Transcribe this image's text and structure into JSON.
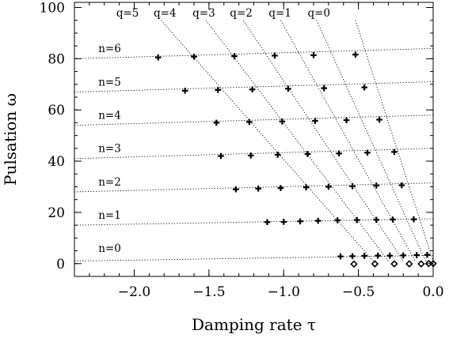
{
  "chart_data": {
    "type": "scatter",
    "xlabel": "Damping rate τ",
    "ylabel": "Pulsation ω",
    "xlim": [
      -2.4,
      0.0
    ],
    "ylim": [
      -5,
      102
    ],
    "xticks": [
      -2.0,
      -1.5,
      -1.0,
      -0.5,
      0.0
    ],
    "xtick_labels": [
      "−2.0",
      "−1.5",
      "−1.0",
      "−0.5",
      "0.0"
    ],
    "yticks": [
      0,
      20,
      40,
      60,
      80,
      100
    ],
    "ytick_labels": [
      "0",
      "20",
      "40",
      "60",
      "80",
      "100"
    ],
    "grid": false,
    "legend": null,
    "n_lines": [
      {
        "label": "n=0",
        "x": [
          -2.4,
          0.0
        ],
        "y": [
          1.0,
          3.2
        ]
      },
      {
        "label": "n=1",
        "x": [
          -2.4,
          0.0
        ],
        "y": [
          15.0,
          17.5
        ]
      },
      {
        "label": "n=2",
        "x": [
          -2.4,
          0.0
        ],
        "y": [
          28.0,
          31.5
        ]
      },
      {
        "label": "n=3",
        "x": [
          -2.4,
          0.0
        ],
        "y": [
          41.0,
          45.0
        ]
      },
      {
        "label": "n=4",
        "x": [
          -2.4,
          0.0
        ],
        "y": [
          54.0,
          58.0
        ]
      },
      {
        "label": "n=5",
        "x": [
          -2.4,
          0.0
        ],
        "y": [
          67.0,
          71.0
        ]
      },
      {
        "label": "n=6",
        "x": [
          -2.4,
          0.0
        ],
        "y": [
          80.0,
          84.0
        ]
      }
    ],
    "q_lines": [
      {
        "label": "q=0",
        "x": [
          -0.52,
          0.0
        ],
        "y": [
          95.0,
          1.0
        ]
      },
      {
        "label": "q=1",
        "x": [
          -0.78,
          -0.05
        ],
        "y": [
          95.0,
          1.0
        ]
      },
      {
        "label": "q=2",
        "x": [
          -1.02,
          -0.12
        ],
        "y": [
          95.0,
          1.0
        ]
      },
      {
        "label": "q=3",
        "x": [
          -1.27,
          -0.2
        ],
        "y": [
          95.0,
          1.0
        ]
      },
      {
        "label": "q=4",
        "x": [
          -1.52,
          -0.3
        ],
        "y": [
          95.0,
          1.0
        ]
      },
      {
        "label": "q=5",
        "x": [
          -1.82,
          -0.4
        ],
        "y": [
          95.0,
          1.0
        ]
      }
    ],
    "series": [
      {
        "marker": "plus",
        "points": [
          [
            -1.84,
            80.5
          ],
          [
            -1.6,
            80.8
          ],
          [
            -1.33,
            81
          ],
          [
            -1.06,
            81.2
          ],
          [
            -0.8,
            81.4
          ],
          [
            -0.52,
            81.6
          ],
          [
            -1.66,
            67.5
          ],
          [
            -1.44,
            67.8
          ],
          [
            -1.21,
            68
          ],
          [
            -0.97,
            68.3
          ],
          [
            -0.73,
            68.5
          ],
          [
            -0.46,
            68.8
          ],
          [
            -1.45,
            55
          ],
          [
            -1.23,
            55.3
          ],
          [
            -1.01,
            55.5
          ],
          [
            -0.79,
            55.7
          ],
          [
            -0.58,
            56
          ],
          [
            -0.36,
            56.2
          ],
          [
            -1.42,
            42
          ],
          [
            -1.22,
            42.2
          ],
          [
            -1.04,
            42.5
          ],
          [
            -0.84,
            42.8
          ],
          [
            -0.63,
            43
          ],
          [
            -0.44,
            43.3
          ],
          [
            -0.26,
            43.6
          ],
          [
            -1.32,
            29
          ],
          [
            -1.17,
            29.3
          ],
          [
            -1.02,
            29.5
          ],
          [
            -0.85,
            29.8
          ],
          [
            -0.7,
            30
          ],
          [
            -0.54,
            30.2
          ],
          [
            -0.38,
            30.5
          ],
          [
            -0.21,
            30.6
          ],
          [
            -1.11,
            16.2
          ],
          [
            -1.0,
            16.3
          ],
          [
            -0.89,
            16.5
          ],
          [
            -0.77,
            16.7
          ],
          [
            -0.64,
            16.9
          ],
          [
            -0.51,
            17
          ],
          [
            -0.38,
            17.1
          ],
          [
            -0.27,
            17.2
          ],
          [
            -0.13,
            17.3
          ],
          [
            -0.62,
            2.8
          ],
          [
            -0.54,
            2.9
          ],
          [
            -0.46,
            3
          ],
          [
            -0.37,
            3.1
          ],
          [
            -0.29,
            3.1
          ],
          [
            -0.2,
            3.2
          ],
          [
            -0.11,
            3.3
          ],
          [
            -0.04,
            3.4
          ]
        ]
      },
      {
        "marker": "diamond",
        "points": [
          [
            -0.53,
            -0.2
          ],
          [
            -0.39,
            -0.1
          ],
          [
            -0.26,
            -0.1
          ],
          [
            -0.16,
            -0.1
          ],
          [
            -0.08,
            -0.1
          ],
          [
            -0.03,
            0
          ],
          [
            0.0,
            0
          ]
        ]
      }
    ],
    "annotations": [
      {
        "text": "n=6",
        "x": -2.24,
        "y": 82.5
      },
      {
        "text": "n=5",
        "x": -2.24,
        "y": 69.5
      },
      {
        "text": "n=4",
        "x": -2.24,
        "y": 56.5
      },
      {
        "text": "n=3",
        "x": -2.24,
        "y": 43.5
      },
      {
        "text": "n=2",
        "x": -2.24,
        "y": 30.5
      },
      {
        "text": "n=1",
        "x": -2.24,
        "y": 17.5
      },
      {
        "text": "n=0",
        "x": -2.24,
        "y": 4.5
      },
      {
        "text": "q=5",
        "x": -2.12,
        "y": 96.5
      },
      {
        "text": "q=4",
        "x": -1.87,
        "y": 96.5
      },
      {
        "text": "q=3",
        "x": -1.61,
        "y": 96.5
      },
      {
        "text": "q=2",
        "x": -1.36,
        "y": 96.5
      },
      {
        "text": "q=1",
        "x": -1.1,
        "y": 96.5
      },
      {
        "text": "q=0",
        "x": -0.84,
        "y": 96.5
      }
    ]
  }
}
